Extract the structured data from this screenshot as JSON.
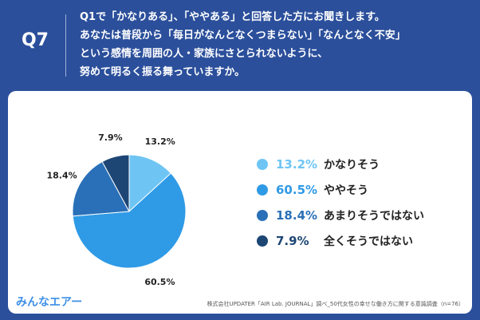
{
  "question_number": "Q7",
  "question_lines": [
    "Q1で「かなりある」、「ややある」と回答した方にお聞きします。",
    "あなたは普段から「毎日がなんとなくつまらない」「なんとなく不安」",
    "という感情を周囲の人・家族にさとられないように、",
    "努めて明るく振る舞っていますか。"
  ],
  "chart_data": {
    "type": "pie",
    "slices": [
      {
        "label": "かなりそう",
        "value": 13.2,
        "display": "13.2%",
        "color": "#6ec5f4"
      },
      {
        "label": "ややそう",
        "value": 60.5,
        "display": "60.5%",
        "color": "#2f9ae6"
      },
      {
        "label": "あまりそうではない",
        "value": 18.4,
        "display": "18.4%",
        "color": "#2a70b8"
      },
      {
        "label": "全くそうではない",
        "value": 7.9,
        "display": "7.9%",
        "color": "#1d4675"
      }
    ],
    "legend_position": "right"
  },
  "brand": "みんなエアー",
  "source": "株式会社UPDATER「AIR Lab. JOURNAL」調べ_50代女性の幸せな働き方に関する意識調査（n=76）"
}
